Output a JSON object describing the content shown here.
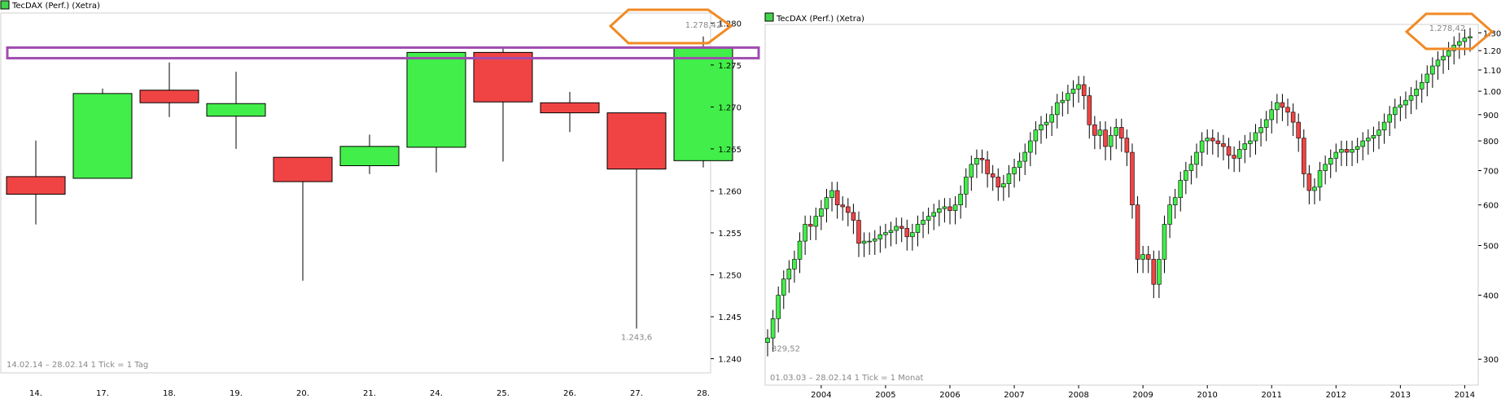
{
  "chart_data": [
    {
      "type": "candlestick",
      "legend": "TecDAX (Perf.) (Xetra)",
      "info": "14.02.14 – 28.02.14   1 Tick = 1 Tag",
      "categories": [
        "14.",
        "17.",
        "18.",
        "19.",
        "20.",
        "21.",
        "24.",
        "25.",
        "26.",
        "27.",
        "28."
      ],
      "y_ticks": [
        "1.280",
        "1.275",
        "1.270",
        "1.265",
        "1.260",
        "1.255",
        "1.250",
        "1.245",
        "1.240"
      ],
      "ylim": [
        1238.5,
        1281.0
      ],
      "candles": [
        {
          "o": 1261.7,
          "h": 1266.0,
          "l": 1256.0,
          "c": 1259.6,
          "up": false
        },
        {
          "o": 1261.5,
          "h": 1272.2,
          "l": 1261.5,
          "c": 1271.6,
          "up": true
        },
        {
          "o": 1272.0,
          "h": 1275.3,
          "l": 1268.8,
          "c": 1270.5,
          "up": false
        },
        {
          "o": 1268.9,
          "h": 1274.2,
          "l": 1265.0,
          "c": 1270.4,
          "up": true
        },
        {
          "o": 1264.0,
          "h": 1264.0,
          "l": 1249.3,
          "c": 1261.1,
          "up": false
        },
        {
          "o": 1263.0,
          "h": 1266.7,
          "l": 1262.0,
          "c": 1265.3,
          "up": true
        },
        {
          "o": 1265.2,
          "h": 1276.5,
          "l": 1262.2,
          "c": 1276.5,
          "up": true
        },
        {
          "o": 1276.5,
          "h": 1277.0,
          "l": 1263.5,
          "c": 1270.6,
          "up": false
        },
        {
          "o": 1270.5,
          "h": 1271.8,
          "l": 1267.0,
          "c": 1269.3,
          "up": false
        },
        {
          "o": 1269.3,
          "h": 1269.3,
          "l": 1243.6,
          "c": 1262.6,
          "up": false
        },
        {
          "o": 1263.6,
          "h": 1278.4,
          "l": 1262.8,
          "c": 1277.0,
          "up": true
        }
      ],
      "annotations": {
        "high_label": "1.278,42",
        "low_label": "1.243,6"
      },
      "highlight_band_level": 1276.3,
      "grid": false
    },
    {
      "type": "candlestick",
      "scale": "log",
      "legend": "TecDAX (Perf.) (Xetra)",
      "info": "01.03.03 – 28.02.14   1 Tick = 1 Monat",
      "x_ticks": [
        "2004",
        "2005",
        "2006",
        "2007",
        "2008",
        "2009",
        "2010",
        "2011",
        "2012",
        "2013",
        "2014"
      ],
      "y_ticks": [
        "1.300",
        "1.200",
        "1.100",
        "1.000",
        "900",
        "800",
        "700",
        "600",
        "500",
        "400",
        "300"
      ],
      "ylim": [
        270,
        1340
      ],
      "start": "2003-03",
      "closes": [
        330,
        360,
        400,
        430,
        450,
        470,
        510,
        550,
        545,
        570,
        590,
        620,
        640,
        600,
        595,
        580,
        560,
        505,
        510,
        510,
        515,
        525,
        530,
        535,
        545,
        540,
        520,
        530,
        550,
        560,
        570,
        580,
        590,
        595,
        585,
        600,
        630,
        680,
        720,
        740,
        735,
        690,
        680,
        650,
        660,
        690,
        710,
        730,
        760,
        800,
        840,
        860,
        870,
        900,
        950,
        960,
        990,
        1010,
        1030,
        980,
        860,
        820,
        840,
        780,
        820,
        850,
        810,
        760,
        600,
        470,
        480,
        470,
        420,
        470,
        550,
        600,
        620,
        670,
        700,
        720,
        760,
        800,
        810,
        800,
        790,
        780,
        750,
        740,
        770,
        790,
        800,
        830,
        850,
        880,
        920,
        950,
        930,
        910,
        870,
        810,
        690,
        640,
        650,
        700,
        720,
        740,
        760,
        770,
        760,
        770,
        780,
        800,
        810,
        820,
        840,
        870,
        900,
        930,
        940,
        960,
        980,
        1010,
        1040,
        1080,
        1120,
        1150,
        1170,
        1200,
        1230,
        1250,
        1270,
        1278
      ],
      "annotations": {
        "high_label": "1.278,42",
        "low_label": "329,52"
      },
      "grid": false
    }
  ]
}
